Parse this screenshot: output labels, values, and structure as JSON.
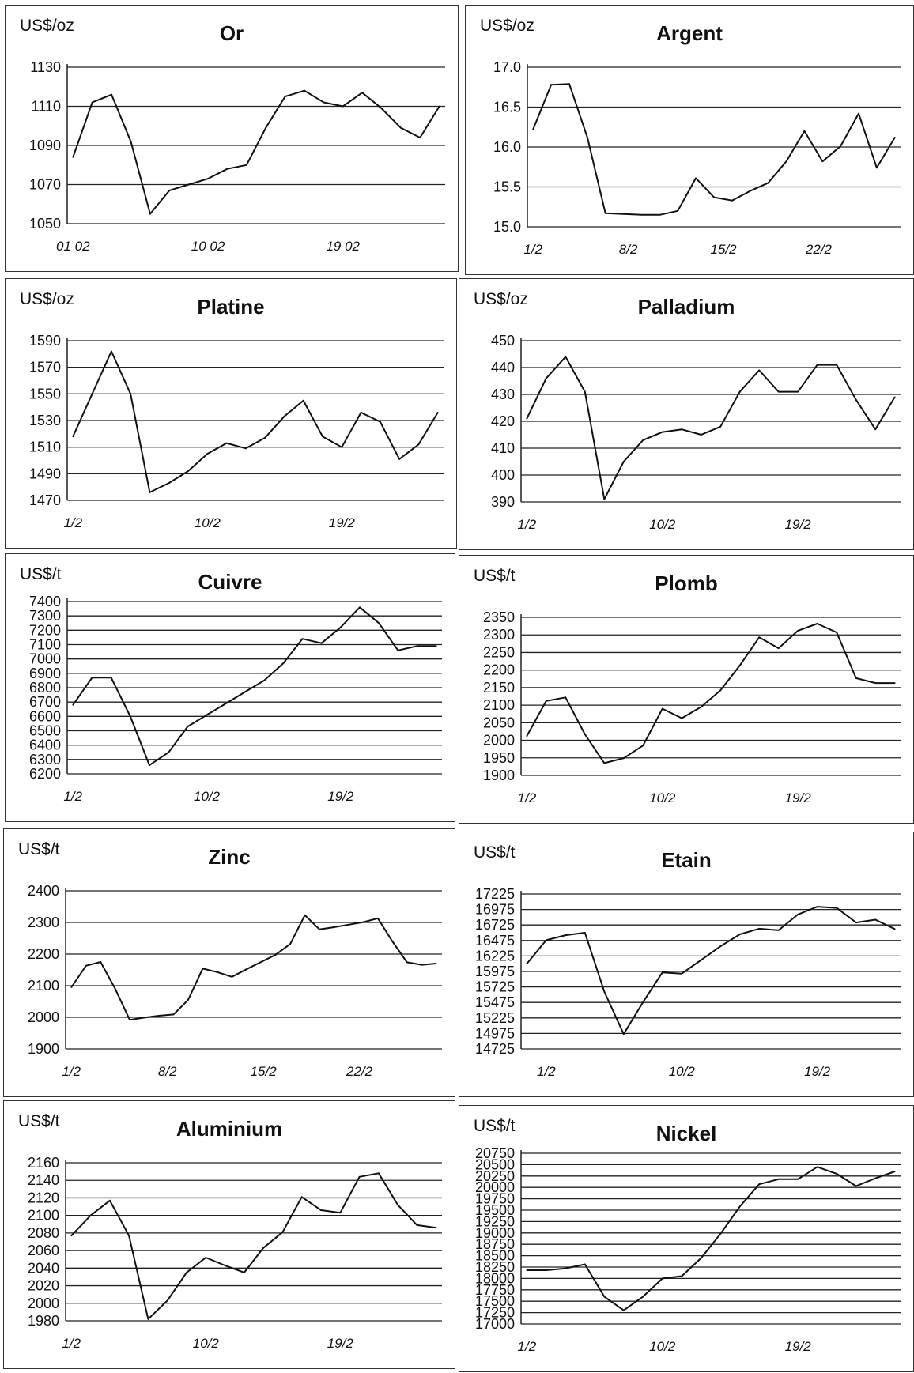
{
  "chart_data": [
    {
      "type": "line",
      "title": "Or",
      "unit": "US$/oz",
      "yticks": [
        "1130",
        "1110",
        "1090",
        "1070",
        "1050"
      ],
      "ylim": [
        1050,
        1130
      ],
      "xticks": [
        {
          "label": "01 02",
          "x": 0
        },
        {
          "label": "10 02",
          "x": 7
        },
        {
          "label": "19 02",
          "x": 14
        }
      ],
      "xlim": [
        -0.3,
        19.3
      ],
      "values": [
        1084,
        1112,
        1116,
        1092,
        1055,
        1067,
        1070,
        1073,
        1078,
        1080,
        1099,
        1115,
        1118,
        1112,
        1110,
        1117,
        1109,
        1099,
        1094,
        1110
      ]
    },
    {
      "type": "line",
      "title": "Argent",
      "unit": "US$/oz",
      "yticks": [
        "17.0",
        "16.5",
        "16.0",
        "15.5",
        "15.0"
      ],
      "ylim": [
        15.0,
        17.0
      ],
      "xticks": [
        {
          "label": "1/2",
          "x": 0
        },
        {
          "label": "8/2",
          "x": 5
        },
        {
          "label": "15/2",
          "x": 10
        },
        {
          "label": "22/2",
          "x": 15
        }
      ],
      "xlim": [
        -0.3,
        19.3
      ],
      "values": [
        16.22,
        16.78,
        16.79,
        16.12,
        15.17,
        15.16,
        15.15,
        15.15,
        15.2,
        15.61,
        15.37,
        15.33,
        15.45,
        15.55,
        15.82,
        16.2,
        15.82,
        16.01,
        16.42,
        15.74,
        16.12
      ]
    },
    {
      "type": "line",
      "title": "Platine",
      "unit": "US$/oz",
      "yticks": [
        "1590",
        "1570",
        "1550",
        "1530",
        "1510",
        "1490",
        "1470"
      ],
      "ylim": [
        1470,
        1590
      ],
      "xticks": [
        {
          "label": "1/2",
          "x": 0
        },
        {
          "label": "10/2",
          "x": 7
        },
        {
          "label": "19/2",
          "x": 14
        }
      ],
      "xlim": [
        -0.3,
        19.3
      ],
      "values": [
        1518,
        1550,
        1582,
        1550,
        1476,
        1483,
        1492,
        1505,
        1513,
        1509,
        1517,
        1533,
        1545,
        1518,
        1510,
        1536,
        1529,
        1501,
        1512,
        1536
      ]
    },
    {
      "type": "line",
      "title": "Palladium",
      "unit": "US$/oz",
      "yticks": [
        "450",
        "440",
        "430",
        "420",
        "410",
        "400",
        "390"
      ],
      "ylim": [
        390,
        450
      ],
      "xticks": [
        {
          "label": "1/2",
          "x": 0
        },
        {
          "label": "10/2",
          "x": 7
        },
        {
          "label": "19/2",
          "x": 14
        }
      ],
      "xlim": [
        -0.3,
        19.3
      ],
      "values": [
        421,
        436,
        444,
        431,
        391,
        405,
        413,
        416,
        417,
        415,
        418,
        431,
        439,
        431,
        431,
        441,
        441,
        428,
        417,
        429
      ]
    },
    {
      "type": "line",
      "title": "Cuivre",
      "unit": "US$/t",
      "yticks": [
        "7400",
        "7300",
        "7200",
        "7100",
        "7000",
        "6900",
        "6800",
        "6700",
        "6600",
        "6500",
        "6400",
        "6300",
        "6200"
      ],
      "ylim": [
        6200,
        7400
      ],
      "xticks": [
        {
          "label": "1/2",
          "x": 0
        },
        {
          "label": "10/2",
          "x": 7
        },
        {
          "label": "19/2",
          "x": 14
        }
      ],
      "xlim": [
        -0.3,
        19.3
      ],
      "values": [
        6680,
        6870,
        6870,
        6600,
        6260,
        6350,
        6530,
        6610,
        6690,
        6770,
        6850,
        6970,
        7140,
        7110,
        7220,
        7360,
        7250,
        7060,
        7090,
        7090
      ]
    },
    {
      "type": "line",
      "title": "Plomb",
      "unit": "US$/t",
      "yticks": [
        "2350",
        "2300",
        "2250",
        "2200",
        "2150",
        "2100",
        "2050",
        "2000",
        "1950",
        "1900"
      ],
      "ylim": [
        1900,
        2350
      ],
      "xticks": [
        {
          "label": "1/2",
          "x": 0
        },
        {
          "label": "10/2",
          "x": 7
        },
        {
          "label": "19/2",
          "x": 14
        }
      ],
      "xlim": [
        -0.3,
        19.3
      ],
      "values": [
        2012,
        2112,
        2122,
        2017,
        1935,
        1949,
        1985,
        2090,
        2063,
        2095,
        2142,
        2213,
        2293,
        2262,
        2312,
        2332,
        2307,
        2177,
        2163,
        2163
      ]
    },
    {
      "type": "line",
      "title": "Zinc",
      "unit": "US$/t",
      "yticks": [
        "2400",
        "2300",
        "2200",
        "2100",
        "2000",
        "1900"
      ],
      "ylim": [
        1900,
        2400
      ],
      "xticks": [
        {
          "label": "1/2",
          "x": 0
        },
        {
          "label": "8/2",
          "x": 5
        },
        {
          "label": "15/2",
          "x": 10
        },
        {
          "label": "22/2",
          "x": 15
        }
      ],
      "xlim": [
        -0.3,
        19.3
      ],
      "values": [
        2095,
        2163,
        2175,
        2090,
        1992,
        1999,
        2005,
        2009,
        2055,
        2154,
        2143,
        2128,
        2152,
        2175,
        2198,
        2232,
        2323,
        2278,
        2285,
        2293,
        2301,
        2313,
        2240,
        2174,
        2166,
        2170
      ]
    },
    {
      "type": "line",
      "title": "Etain",
      "unit": "US$/t",
      "yticks": [
        "17225",
        "16975",
        "16725",
        "16475",
        "16225",
        "15975",
        "15725",
        "15475",
        "15225",
        "14975",
        "14725"
      ],
      "ylim": [
        14725,
        17225
      ],
      "xticks": [
        {
          "label": "1/2",
          "x": 1
        },
        {
          "label": "10/2",
          "x": 8
        },
        {
          "label": "19/2",
          "x": 15
        }
      ],
      "xlim": [
        -0.3,
        19.3
      ],
      "values": [
        16100,
        16480,
        16560,
        16600,
        15650,
        14965,
        15480,
        15960,
        15940,
        16160,
        16380,
        16575,
        16665,
        16640,
        16895,
        17020,
        17000,
        16765,
        16810,
        16660
      ]
    },
    {
      "type": "line",
      "title": "Aluminium",
      "unit": "US$/t",
      "yticks": [
        "2160",
        "2140",
        "2120",
        "2100",
        "2080",
        "2060",
        "2040",
        "2020",
        "2000",
        "1980"
      ],
      "ylim": [
        1980,
        2160
      ],
      "xticks": [
        {
          "label": "1/2",
          "x": 0
        },
        {
          "label": "10/2",
          "x": 7
        },
        {
          "label": "19/2",
          "x": 14
        }
      ],
      "xlim": [
        -0.3,
        19.3
      ],
      "values": [
        2077,
        2100,
        2117,
        2077,
        1982,
        2003,
        2035,
        2052,
        2043,
        2035,
        2063,
        2081,
        2121,
        2106,
        2103,
        2144,
        2148,
        2112,
        2089,
        2086
      ]
    },
    {
      "type": "line",
      "title": "Nickel",
      "unit": "US$/t",
      "yticks": [
        "20750",
        "20500",
        "20250",
        "20000",
        "19750",
        "19500",
        "19250",
        "19000",
        "18750",
        "18500",
        "18250",
        "18000",
        "17750",
        "17500",
        "17250",
        "17000"
      ],
      "ylim": [
        17000,
        20750
      ],
      "xticks": [
        {
          "label": "1/2",
          "x": 0
        },
        {
          "label": "10/2",
          "x": 7
        },
        {
          "label": "19/2",
          "x": 14
        }
      ],
      "xlim": [
        -0.3,
        19.3
      ],
      "values": [
        18180,
        18180,
        18220,
        18310,
        17600,
        17300,
        17600,
        18000,
        18050,
        18450,
        18980,
        19580,
        20070,
        20180,
        20180,
        20450,
        20300,
        20030,
        20200,
        20350
      ]
    }
  ]
}
